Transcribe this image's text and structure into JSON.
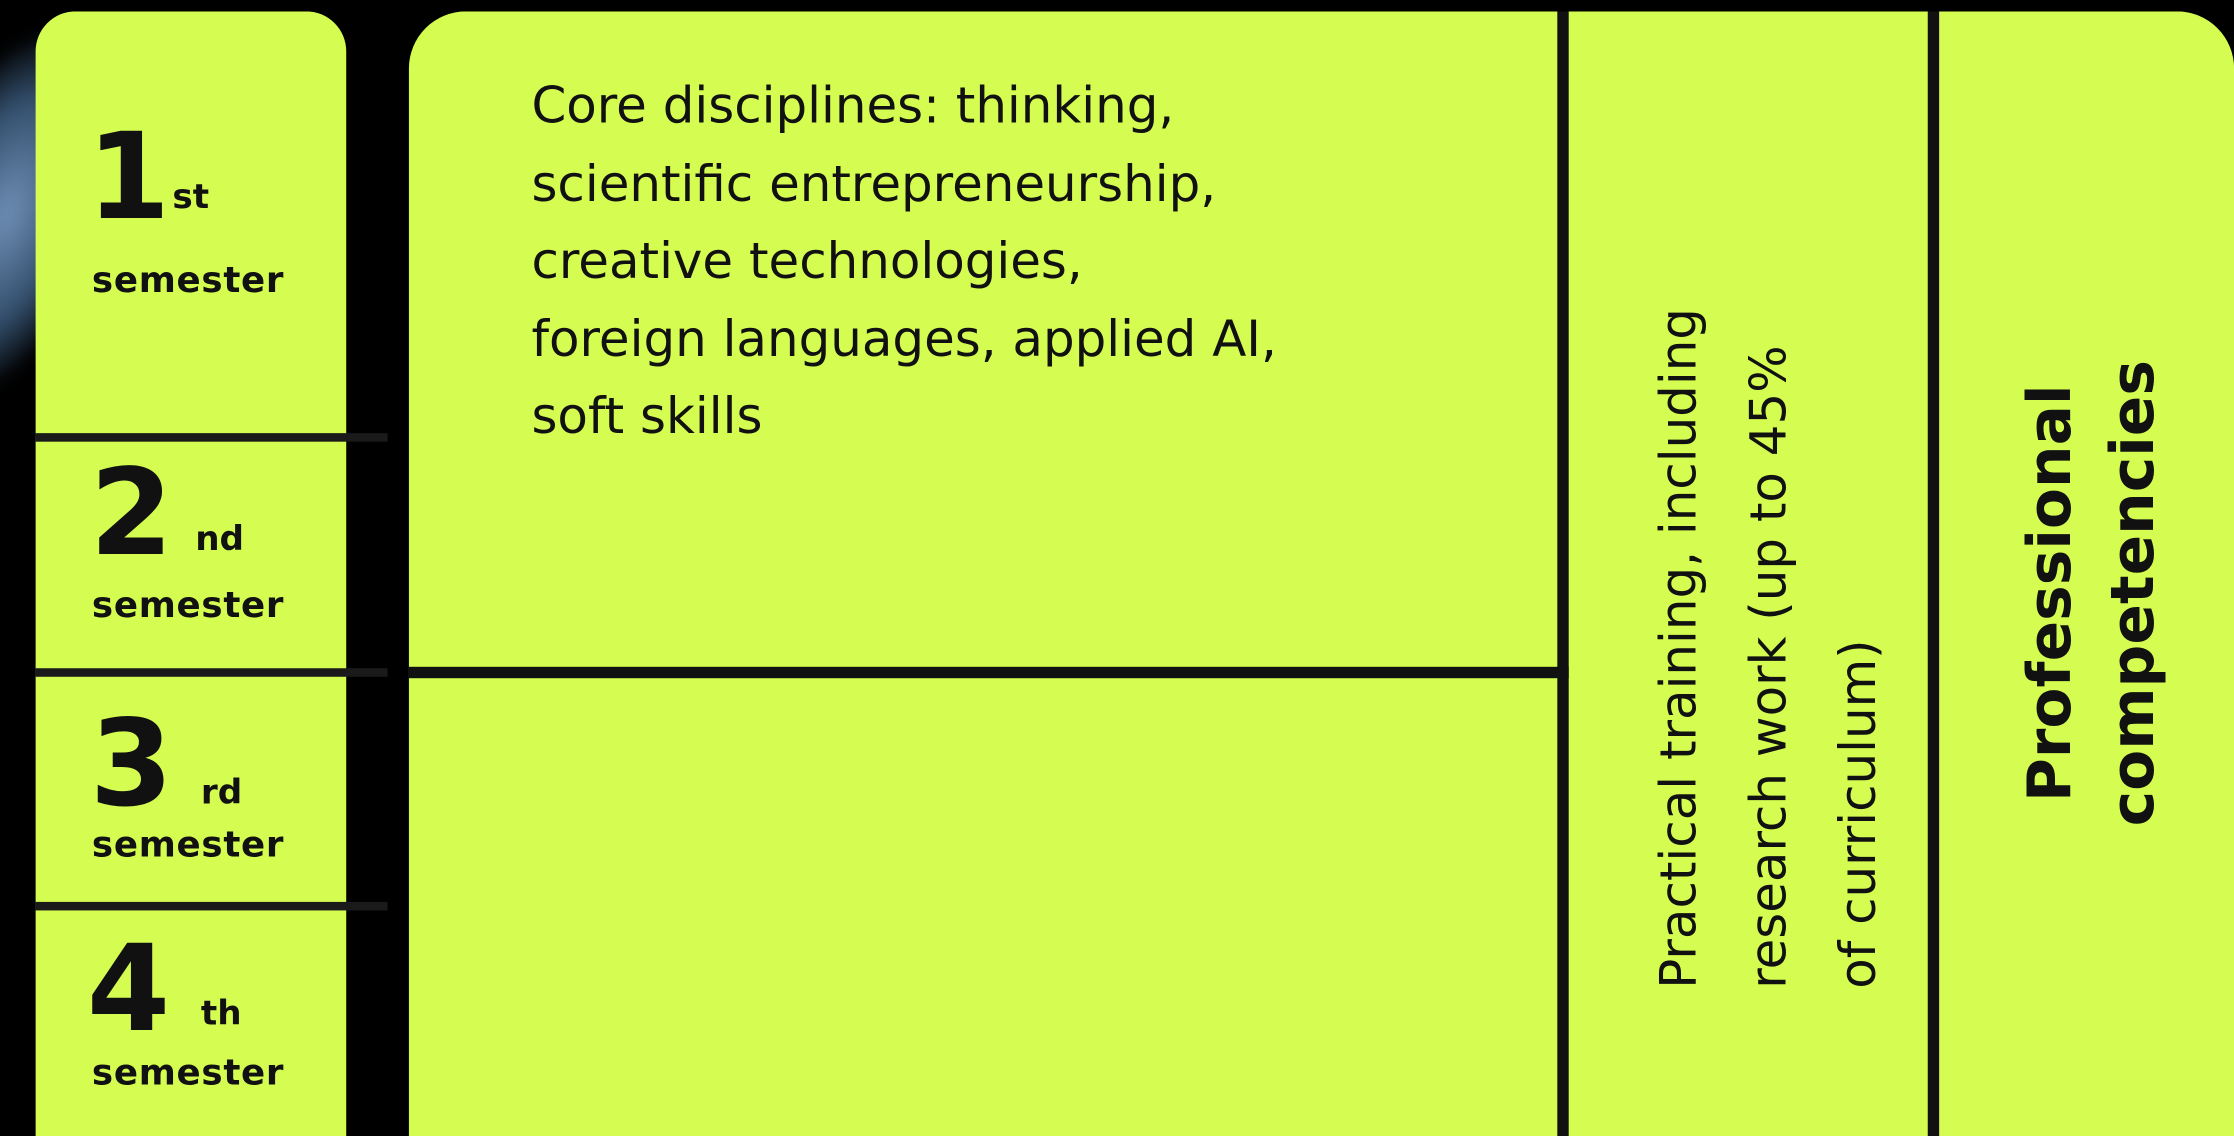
{
  "semesters": [
    {
      "number": "1",
      "suffix": "st",
      "label": "semester"
    },
    {
      "number": "2",
      "suffix": "nd",
      "label": "semester"
    },
    {
      "number": "3",
      "suffix": "rd",
      "label": "semester"
    },
    {
      "number": "4",
      "suffix": "th",
      "label": "semester"
    }
  ],
  "core": {
    "lines": [
      "Core disciplines: thinking,",
      "scientific entrepreneurship,",
      "creative technologies,",
      "foreign languages, applied AI,",
      "soft skills"
    ]
  },
  "practical": {
    "lines": [
      "Practical training, including",
      "research work (up to 45%",
      "of curriculum)"
    ]
  },
  "professional": {
    "lines": [
      "Professional",
      "competencies"
    ]
  }
}
